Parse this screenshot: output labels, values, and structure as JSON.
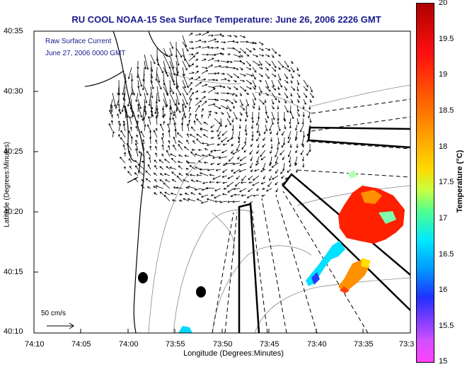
{
  "title": "RU COOL  NOAA-15  Sea Surface Temperature:  June 26, 2006 2226 GMT",
  "overlay": {
    "raw_label": "Raw Surface Current",
    "raw_date": "June 27, 2006 0000 GMT",
    "scale_label": "50 cm/s"
  },
  "axes": {
    "xlabel": "Longitude (Degrees:Minutes)",
    "ylabel": "Latitude (Degrees:Minutes)",
    "xticks": [
      "74:10",
      "74:05",
      "74:00",
      "73:55",
      "73:50",
      "73:45",
      "73:40",
      "73:35",
      "73:3"
    ],
    "yticks": [
      "40:35",
      "40:30",
      "40:25",
      "40:20",
      "40:15",
      "40:10"
    ]
  },
  "colorbar": {
    "label": "Temperature (°C)",
    "ticks": [
      "20",
      "19.5",
      "19",
      "18.5",
      "18",
      "17.5",
      "17",
      "16.5",
      "16",
      "15.5",
      "15"
    ],
    "colors": {
      "hot": "#ff2000",
      "warm": "#ff9000",
      "cool": "#00e0ff",
      "cold": "#2040ff"
    }
  }
}
